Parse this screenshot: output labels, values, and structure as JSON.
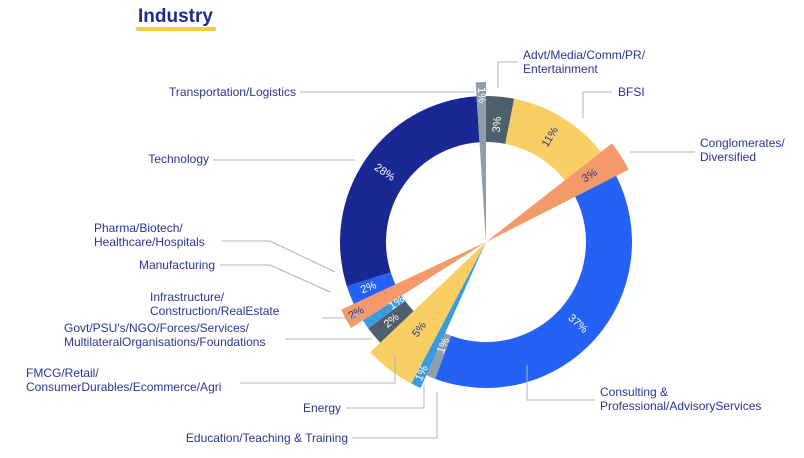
{
  "title": "Industry",
  "chart_data": {
    "type": "pie",
    "title": "Industry",
    "unit": "%",
    "slices": [
      {
        "name": "Advt/Media/Comm/PR/ Entertainment",
        "line1": "Advt/Media/Comm/PR/",
        "line2": "Entertainment",
        "value": 3,
        "label": "3%",
        "color": "#4f5f6b",
        "text_color": "#ffffff",
        "exploded": false
      },
      {
        "name": "BFSI",
        "line1": "BFSI",
        "line2": "",
        "value": 11,
        "label": "11%",
        "color": "#f9cf63",
        "text_color": "#2a3592",
        "exploded": false
      },
      {
        "name": "Conglomerates/ Diversified",
        "line1": "Conglomerates/",
        "line2": "Diversified",
        "value": 3,
        "label": "3%",
        "color": "#f4996a",
        "text_color": "#2a3592",
        "exploded": true
      },
      {
        "name": "Consulting & Professional/AdvisoryServices",
        "line1": "Consulting &",
        "line2": "Professional/AdvisoryServices",
        "value": 37,
        "label": "37%",
        "color": "#2461f5",
        "text_color": "#ffffff",
        "exploded": false
      },
      {
        "name": "Education/Teaching & Training",
        "line1": "Education/Teaching & Training",
        "line2": "",
        "value": 1,
        "label": "1%",
        "color": "#8f9eab",
        "text_color": "#ffffff",
        "exploded": false
      },
      {
        "name": "Energy",
        "line1": "Energy",
        "line2": "",
        "value": 1,
        "label": "1%",
        "color": "#3a9be0",
        "text_color": "#ffffff",
        "exploded": true
      },
      {
        "name": "FMCG/Retail/ ConsumerDurables/Ecommerce/Agri",
        "line1": "FMCG/Retail/",
        "line2": "ConsumerDurables/Ecommerce/Agri",
        "value": 5,
        "label": "5%",
        "color": "#f9cf63",
        "text_color": "#2a3592",
        "exploded": true
      },
      {
        "name": "Govt/PSU's/NGO/Forces/Services/ MultilateralOrganisations/Foundations",
        "line1": "Govt/PSU's/NGO/Forces/Services/",
        "line2": "MultilateralOrganisations/Foundations",
        "value": 2,
        "label": "2%",
        "color": "#4f5f6b",
        "text_color": "#ffffff",
        "exploded": false
      },
      {
        "name": "Infrastructure/ Construction/RealEstate",
        "line1": "Infrastructure/",
        "line2": "Construction/RealEstate",
        "value": 1,
        "label": "1%",
        "color": "#3a9be0",
        "text_color": "#ffffff",
        "exploded": false
      },
      {
        "name": "Manufacturing",
        "line1": "Manufacturing",
        "line2": "",
        "value": 2,
        "label": "2%",
        "color": "#f4996a",
        "text_color": "#2a3592",
        "exploded": true
      },
      {
        "name": "Pharma/Biotech/ Healthcare/Hospitals",
        "line1": "Pharma/Biotech/",
        "line2": "Healthcare/Hospitals",
        "value": 2,
        "label": "2%",
        "color": "#2461f5",
        "text_color": "#ffffff",
        "exploded": false
      },
      {
        "name": "Technology",
        "line1": "Technology",
        "line2": "",
        "value": 28,
        "label": "28%",
        "color": "#1a2893",
        "text_color": "#ffffff",
        "exploded": false
      },
      {
        "name": "Transportation/Logistics",
        "line1": "Transportation/Logistics",
        "line2": "",
        "value": 1,
        "label": "1%",
        "color": "#8f9eab",
        "text_color": "#ffffff",
        "exploded": true
      }
    ]
  }
}
